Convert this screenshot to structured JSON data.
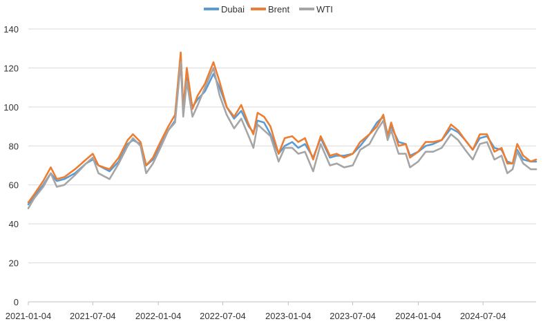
{
  "chart_data": {
    "type": "line",
    "title": "",
    "xlabel": "",
    "ylabel": "",
    "ylim": [
      0,
      140
    ],
    "yticks": [
      0,
      20,
      40,
      60,
      80,
      100,
      120,
      140
    ],
    "x_ticks": [
      "2021-01-04",
      "2021-07-04",
      "2022-01-04",
      "2022-07-04",
      "2023-01-04",
      "2023-07-04",
      "2024-01-04",
      "2024-07-04"
    ],
    "xlim": [
      "2021-01-04",
      "2024-11-30"
    ],
    "grid": "horizontal",
    "legend_position": "top",
    "series": [
      {
        "name": "Dubai",
        "color": "#5B9BD5",
        "points": [
          [
            "2021-01-04",
            50
          ],
          [
            "2021-01-20",
            54
          ],
          [
            "2021-02-15",
            60
          ],
          [
            "2021-03-08",
            66
          ],
          [
            "2021-03-25",
            62
          ],
          [
            "2021-04-15",
            63
          ],
          [
            "2021-05-15",
            66
          ],
          [
            "2021-06-15",
            71
          ],
          [
            "2021-07-04",
            73
          ],
          [
            "2021-07-20",
            70
          ],
          [
            "2021-08-20",
            67
          ],
          [
            "2021-09-15",
            72
          ],
          [
            "2021-10-10",
            81
          ],
          [
            "2021-10-25",
            83
          ],
          [
            "2021-11-15",
            81
          ],
          [
            "2021-12-01",
            70
          ],
          [
            "2021-12-20",
            73
          ],
          [
            "2022-01-10",
            80
          ],
          [
            "2022-02-01",
            88
          ],
          [
            "2022-02-20",
            93
          ],
          [
            "2022-03-08",
            127
          ],
          [
            "2022-03-15",
            100
          ],
          [
            "2022-03-25",
            115
          ],
          [
            "2022-04-10",
            100
          ],
          [
            "2022-04-25",
            104
          ],
          [
            "2022-05-15",
            108
          ],
          [
            "2022-06-08",
            117
          ],
          [
            "2022-06-25",
            110
          ],
          [
            "2022-07-15",
            100
          ],
          [
            "2022-08-05",
            94
          ],
          [
            "2022-08-25",
            98
          ],
          [
            "2022-09-15",
            90
          ],
          [
            "2022-09-28",
            87
          ],
          [
            "2022-10-10",
            93
          ],
          [
            "2022-10-28",
            92
          ],
          [
            "2022-11-15",
            86
          ],
          [
            "2022-12-08",
            76
          ],
          [
            "2022-12-25",
            80
          ],
          [
            "2023-01-15",
            82
          ],
          [
            "2023-02-01",
            79
          ],
          [
            "2023-02-20",
            81
          ],
          [
            "2023-03-15",
            74
          ],
          [
            "2023-04-05",
            84
          ],
          [
            "2023-05-01",
            74
          ],
          [
            "2023-05-20",
            75
          ],
          [
            "2023-06-10",
            75
          ],
          [
            "2023-07-04",
            76
          ],
          [
            "2023-07-25",
            80
          ],
          [
            "2023-08-20",
            86
          ],
          [
            "2023-09-10",
            92
          ],
          [
            "2023-09-28",
            95
          ],
          [
            "2023-10-10",
            86
          ],
          [
            "2023-10-20",
            90
          ],
          [
            "2023-11-10",
            82
          ],
          [
            "2023-11-30",
            81
          ],
          [
            "2023-12-12",
            75
          ],
          [
            "2024-01-04",
            77
          ],
          [
            "2024-01-25",
            80
          ],
          [
            "2024-02-15",
            81
          ],
          [
            "2024-03-10",
            83
          ],
          [
            "2024-04-05",
            89
          ],
          [
            "2024-04-25",
            87
          ],
          [
            "2024-05-15",
            83
          ],
          [
            "2024-06-05",
            78
          ],
          [
            "2024-06-25",
            84
          ],
          [
            "2024-07-15",
            85
          ],
          [
            "2024-08-05",
            79
          ],
          [
            "2024-08-25",
            78
          ],
          [
            "2024-09-10",
            72
          ],
          [
            "2024-09-25",
            71
          ],
          [
            "2024-10-08",
            78
          ],
          [
            "2024-10-25",
            73
          ],
          [
            "2024-11-15",
            72
          ],
          [
            "2024-11-30",
            72
          ]
        ]
      },
      {
        "name": "Brent",
        "color": "#ED7D31",
        "points": [
          [
            "2021-01-04",
            51
          ],
          [
            "2021-01-20",
            55
          ],
          [
            "2021-02-15",
            62
          ],
          [
            "2021-03-08",
            69
          ],
          [
            "2021-03-25",
            63
          ],
          [
            "2021-04-15",
            64
          ],
          [
            "2021-05-15",
            68
          ],
          [
            "2021-06-15",
            73
          ],
          [
            "2021-07-04",
            76
          ],
          [
            "2021-07-20",
            70
          ],
          [
            "2021-08-20",
            68
          ],
          [
            "2021-09-15",
            74
          ],
          [
            "2021-10-10",
            83
          ],
          [
            "2021-10-25",
            86
          ],
          [
            "2021-11-15",
            82
          ],
          [
            "2021-12-01",
            70
          ],
          [
            "2021-12-20",
            74
          ],
          [
            "2022-01-10",
            82
          ],
          [
            "2022-02-01",
            90
          ],
          [
            "2022-02-20",
            96
          ],
          [
            "2022-03-08",
            128
          ],
          [
            "2022-03-15",
            99
          ],
          [
            "2022-03-25",
            120
          ],
          [
            "2022-04-10",
            99
          ],
          [
            "2022-04-25",
            106
          ],
          [
            "2022-05-15",
            112
          ],
          [
            "2022-06-08",
            123
          ],
          [
            "2022-06-25",
            113
          ],
          [
            "2022-07-15",
            100
          ],
          [
            "2022-08-05",
            95
          ],
          [
            "2022-08-25",
            101
          ],
          [
            "2022-09-15",
            91
          ],
          [
            "2022-09-28",
            86
          ],
          [
            "2022-10-10",
            97
          ],
          [
            "2022-10-28",
            95
          ],
          [
            "2022-11-15",
            90
          ],
          [
            "2022-12-08",
            76
          ],
          [
            "2022-12-25",
            84
          ],
          [
            "2023-01-15",
            85
          ],
          [
            "2023-02-01",
            82
          ],
          [
            "2023-02-20",
            84
          ],
          [
            "2023-03-15",
            73
          ],
          [
            "2023-04-05",
            85
          ],
          [
            "2023-05-01",
            75
          ],
          [
            "2023-05-20",
            76
          ],
          [
            "2023-06-10",
            74
          ],
          [
            "2023-07-04",
            76
          ],
          [
            "2023-07-25",
            82
          ],
          [
            "2023-08-20",
            86
          ],
          [
            "2023-09-10",
            90
          ],
          [
            "2023-09-28",
            96
          ],
          [
            "2023-10-10",
            85
          ],
          [
            "2023-10-20",
            92
          ],
          [
            "2023-11-10",
            80
          ],
          [
            "2023-11-30",
            81
          ],
          [
            "2023-12-12",
            74
          ],
          [
            "2024-01-04",
            77
          ],
          [
            "2024-01-25",
            82
          ],
          [
            "2024-02-15",
            82
          ],
          [
            "2024-03-10",
            83
          ],
          [
            "2024-04-05",
            91
          ],
          [
            "2024-04-25",
            88
          ],
          [
            "2024-05-15",
            83
          ],
          [
            "2024-06-05",
            78
          ],
          [
            "2024-06-25",
            86
          ],
          [
            "2024-07-15",
            86
          ],
          [
            "2024-08-05",
            77
          ],
          [
            "2024-08-25",
            79
          ],
          [
            "2024-09-10",
            71
          ],
          [
            "2024-09-25",
            71
          ],
          [
            "2024-10-08",
            81
          ],
          [
            "2024-10-25",
            75
          ],
          [
            "2024-11-15",
            72
          ],
          [
            "2024-11-30",
            73
          ]
        ]
      },
      {
        "name": "WTI",
        "color": "#A5A5A5",
        "points": [
          [
            "2021-01-04",
            48
          ],
          [
            "2021-01-20",
            53
          ],
          [
            "2021-02-15",
            59
          ],
          [
            "2021-03-08",
            66
          ],
          [
            "2021-03-25",
            59
          ],
          [
            "2021-04-15",
            60
          ],
          [
            "2021-05-15",
            65
          ],
          [
            "2021-06-15",
            71
          ],
          [
            "2021-07-04",
            74
          ],
          [
            "2021-07-20",
            66
          ],
          [
            "2021-08-20",
            63
          ],
          [
            "2021-09-15",
            71
          ],
          [
            "2021-10-10",
            80
          ],
          [
            "2021-10-25",
            84
          ],
          [
            "2021-11-15",
            80
          ],
          [
            "2021-12-01",
            66
          ],
          [
            "2021-12-20",
            71
          ],
          [
            "2022-01-10",
            79
          ],
          [
            "2022-02-01",
            88
          ],
          [
            "2022-02-20",
            92
          ],
          [
            "2022-03-08",
            123
          ],
          [
            "2022-03-15",
            95
          ],
          [
            "2022-03-25",
            113
          ],
          [
            "2022-04-10",
            95
          ],
          [
            "2022-04-25",
            101
          ],
          [
            "2022-05-15",
            110
          ],
          [
            "2022-06-08",
            120
          ],
          [
            "2022-06-25",
            106
          ],
          [
            "2022-07-15",
            96
          ],
          [
            "2022-08-05",
            89
          ],
          [
            "2022-08-25",
            94
          ],
          [
            "2022-09-15",
            85
          ],
          [
            "2022-09-28",
            79
          ],
          [
            "2022-10-10",
            91
          ],
          [
            "2022-10-28",
            88
          ],
          [
            "2022-11-15",
            85
          ],
          [
            "2022-12-08",
            72
          ],
          [
            "2022-12-25",
            79
          ],
          [
            "2023-01-15",
            79
          ],
          [
            "2023-02-01",
            76
          ],
          [
            "2023-02-20",
            77
          ],
          [
            "2023-03-15",
            67
          ],
          [
            "2023-04-05",
            81
          ],
          [
            "2023-05-01",
            70
          ],
          [
            "2023-05-20",
            71
          ],
          [
            "2023-06-10",
            69
          ],
          [
            "2023-07-04",
            70
          ],
          [
            "2023-07-25",
            78
          ],
          [
            "2023-08-20",
            81
          ],
          [
            "2023-09-10",
            88
          ],
          [
            "2023-09-28",
            93
          ],
          [
            "2023-10-10",
            83
          ],
          [
            "2023-10-20",
            88
          ],
          [
            "2023-11-10",
            76
          ],
          [
            "2023-11-30",
            76
          ],
          [
            "2023-12-12",
            69
          ],
          [
            "2024-01-04",
            72
          ],
          [
            "2024-01-25",
            77
          ],
          [
            "2024-02-15",
            77
          ],
          [
            "2024-03-10",
            79
          ],
          [
            "2024-04-05",
            86
          ],
          [
            "2024-04-25",
            83
          ],
          [
            "2024-05-15",
            78
          ],
          [
            "2024-06-05",
            73
          ],
          [
            "2024-06-25",
            81
          ],
          [
            "2024-07-15",
            82
          ],
          [
            "2024-08-05",
            73
          ],
          [
            "2024-08-25",
            75
          ],
          [
            "2024-09-10",
            66
          ],
          [
            "2024-09-25",
            68
          ],
          [
            "2024-10-08",
            77
          ],
          [
            "2024-10-25",
            71
          ],
          [
            "2024-11-15",
            68
          ],
          [
            "2024-11-30",
            68
          ]
        ]
      }
    ]
  }
}
